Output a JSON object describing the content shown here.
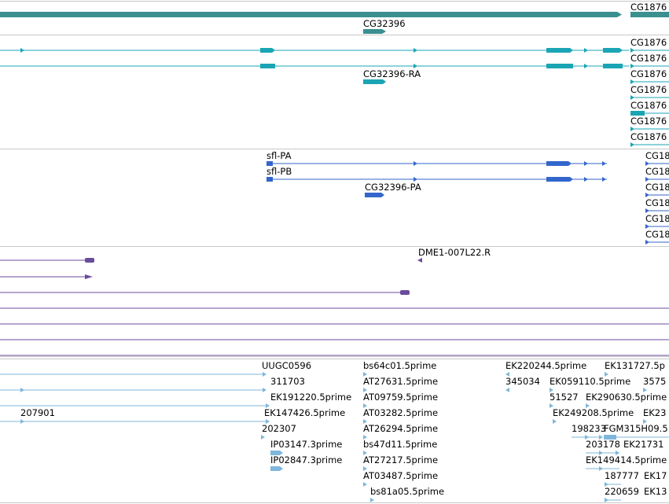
{
  "tracks": {
    "gene_span": {
      "color": "#3a8f8f",
      "labels": [
        "CG1876",
        "CG32396"
      ]
    },
    "transcripts_teal": {
      "color": "#1aa5b5",
      "labels": [
        "CG1876",
        "CG1876",
        "CG1876",
        "CG1876",
        "CG1876",
        "CG1876",
        "CG1876",
        "CG32396-RA"
      ]
    },
    "proteins_blue": {
      "color": "#3366cc",
      "labels": [
        "sfl-PA",
        "sfl-PB",
        "CG32396-PA",
        "CG18",
        "CG18",
        "CG18",
        "CG18",
        "CG18",
        "CG18"
      ]
    },
    "alignments_purple": {
      "color": "#6a4c9c",
      "labels": [
        "DME1-007L22.R"
      ]
    },
    "ests_lightblue": {
      "color": "#7fb7db",
      "labels": [
        "UUGC0596",
        "311703",
        "EK191220.5prime",
        "EK147426.5prime",
        "202307",
        "IP03147.3prime",
        "IP02847.3prime",
        "207901",
        "bs64c01.5prime",
        "AT27631.5prime",
        "AT09759.5prime",
        "AT03282.5prime",
        "AT26294.5prime",
        "bs47d11.5prime",
        "AT27217.5prime",
        "AT03487.5prime",
        "bs81a05.5prime",
        "EK220244.5prime",
        "345034",
        "EK059110.5prime",
        "51527",
        "EK249208.5prime",
        "198233",
        "EK131727.5p",
        "EK290630.5prime",
        "FGM315H09.5",
        "203178",
        "EK21731",
        "EK149414.5prime",
        "187777",
        "EK17",
        "220659",
        "EK13",
        "3575",
        "EK23"
      ]
    }
  }
}
